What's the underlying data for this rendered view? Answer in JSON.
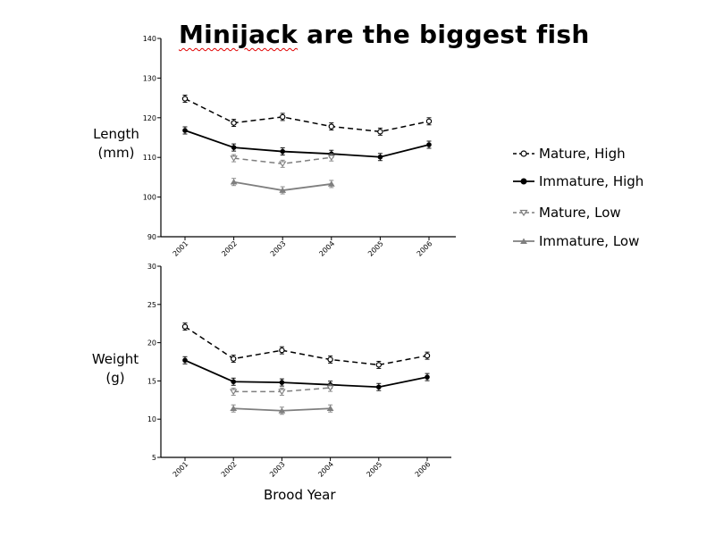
{
  "title": "Minijack are the biggest fish",
  "xlabel": "Brood Year",
  "legend": [
    "Mature, High",
    "Immature, High",
    "Mature, Low",
    "Immature, Low"
  ],
  "colors": {
    "black": "#000000",
    "grey": "#7f7f7f",
    "title_underline": "#e00000"
  },
  "chart_data": [
    {
      "type": "line",
      "title": "Minijack are the biggest fish",
      "ylabel_lines": [
        "Length",
        "(mm)"
      ],
      "xlabel": "",
      "x_ticks": [
        "2001",
        "2002",
        "2003",
        "2004",
        "2005",
        "2006"
      ],
      "ylim": [
        90,
        140
      ],
      "y_ticks": [
        90,
        100,
        110,
        120,
        130,
        140
      ],
      "series": [
        {
          "name": "Mature, High",
          "color": "#000000",
          "dash": true,
          "marker": "circle-open",
          "x": [
            "2001",
            "2002",
            "2003",
            "2004",
            "2005",
            "2006"
          ],
          "values": [
            124.8,
            118.7,
            120.2,
            117.8,
            116.5,
            119.1
          ]
        },
        {
          "name": "Immature, High",
          "color": "#000000",
          "dash": false,
          "marker": "circle-filled",
          "x": [
            "2001",
            "2002",
            "2003",
            "2004",
            "2005",
            "2006"
          ],
          "values": [
            116.8,
            112.5,
            111.5,
            110.9,
            110.1,
            113.2
          ]
        },
        {
          "name": "Mature, Low",
          "color": "#7f7f7f",
          "dash": true,
          "marker": "triangle-down-open",
          "x": [
            "2002",
            "2003",
            "2004"
          ],
          "values": [
            109.8,
            108.4,
            110.0
          ]
        },
        {
          "name": "Immature, Low",
          "color": "#7f7f7f",
          "dash": false,
          "marker": "triangle-up-filled",
          "x": [
            "2002",
            "2003",
            "2004"
          ],
          "values": [
            103.8,
            101.7,
            103.3
          ]
        }
      ]
    },
    {
      "type": "line",
      "ylabel_lines": [
        "Weight",
        "(g)"
      ],
      "xlabel": "Brood Year",
      "x_ticks": [
        "2001",
        "2002",
        "2003",
        "2004",
        "2005",
        "2006"
      ],
      "ylim": [
        5,
        30
      ],
      "y_ticks": [
        5,
        10,
        15,
        20,
        25,
        30
      ],
      "series": [
        {
          "name": "Mature, High",
          "color": "#000000",
          "dash": true,
          "marker": "circle-open",
          "x": [
            "2001",
            "2002",
            "2003",
            "2004",
            "2005",
            "2006"
          ],
          "values": [
            22.1,
            17.9,
            19.0,
            17.8,
            17.1,
            18.3
          ]
        },
        {
          "name": "Immature, High",
          "color": "#000000",
          "dash": false,
          "marker": "circle-filled",
          "x": [
            "2001",
            "2002",
            "2003",
            "2004",
            "2005",
            "2006"
          ],
          "values": [
            17.7,
            14.9,
            14.8,
            14.5,
            14.2,
            15.5
          ]
        },
        {
          "name": "Mature, Low",
          "color": "#7f7f7f",
          "dash": true,
          "marker": "triangle-down-open",
          "x": [
            "2002",
            "2003",
            "2004"
          ],
          "values": [
            13.6,
            13.6,
            14.1
          ]
        },
        {
          "name": "Immature, Low",
          "color": "#7f7f7f",
          "dash": false,
          "marker": "triangle-up-filled",
          "x": [
            "2002",
            "2003",
            "2004"
          ],
          "values": [
            11.4,
            11.1,
            11.4
          ]
        }
      ]
    }
  ]
}
